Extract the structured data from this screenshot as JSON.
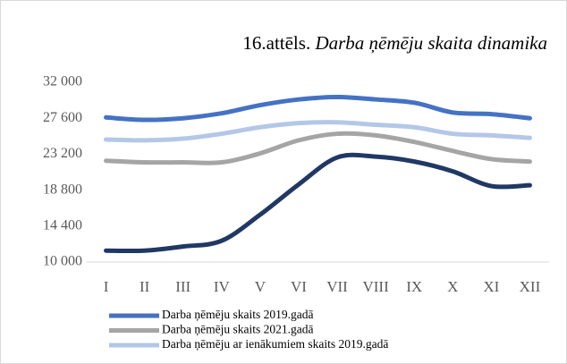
{
  "chart_data": {
    "type": "line",
    "title_label": "16.attēls.",
    "title": "Darba ņēmēju skaita dinamika",
    "categories": [
      "I",
      "II",
      "III",
      "IV",
      "V",
      "VI",
      "VII",
      "VIII",
      "IX",
      "X",
      "XI",
      "XII"
    ],
    "series": [
      {
        "name": "Darba ņēmēju skaits 2019.gadā",
        "color": "#4472c4",
        "values": [
          27700,
          27400,
          27600,
          28200,
          29200,
          29900,
          30200,
          29900,
          29500,
          28300,
          28100,
          27600
        ]
      },
      {
        "name": "Darba ņēmēju skaits 2021.gadā",
        "color": "#a5a5a5",
        "values": [
          22400,
          22200,
          22200,
          22200,
          23300,
          24900,
          25700,
          25500,
          24700,
          23600,
          22600,
          22300
        ]
      },
      {
        "name": "Darba ņēmēju ar ienākumiem skaits 2019.gadā",
        "color": "#b4c7e7",
        "values": [
          25000,
          24900,
          25100,
          25700,
          26500,
          27000,
          27100,
          26800,
          26500,
          25700,
          25500,
          25200
        ]
      },
      {
        "color": "#203864",
        "values": [
          11400,
          11400,
          11900,
          12600,
          15800,
          19500,
          22800,
          22900,
          22300,
          21100,
          19300,
          19400
        ]
      }
    ],
    "ylim": [
      10000,
      32000
    ],
    "yticks": [
      {
        "value": 10000,
        "label": "10 000"
      },
      {
        "value": 14400,
        "label": "14 400"
      },
      {
        "value": 18800,
        "label": "18 800"
      },
      {
        "value": 23200,
        "label": "23 200"
      },
      {
        "value": 27600,
        "label": "27 600"
      },
      {
        "value": 32000,
        "label": "32 000"
      }
    ],
    "grid": false,
    "legend": "bottom"
  }
}
